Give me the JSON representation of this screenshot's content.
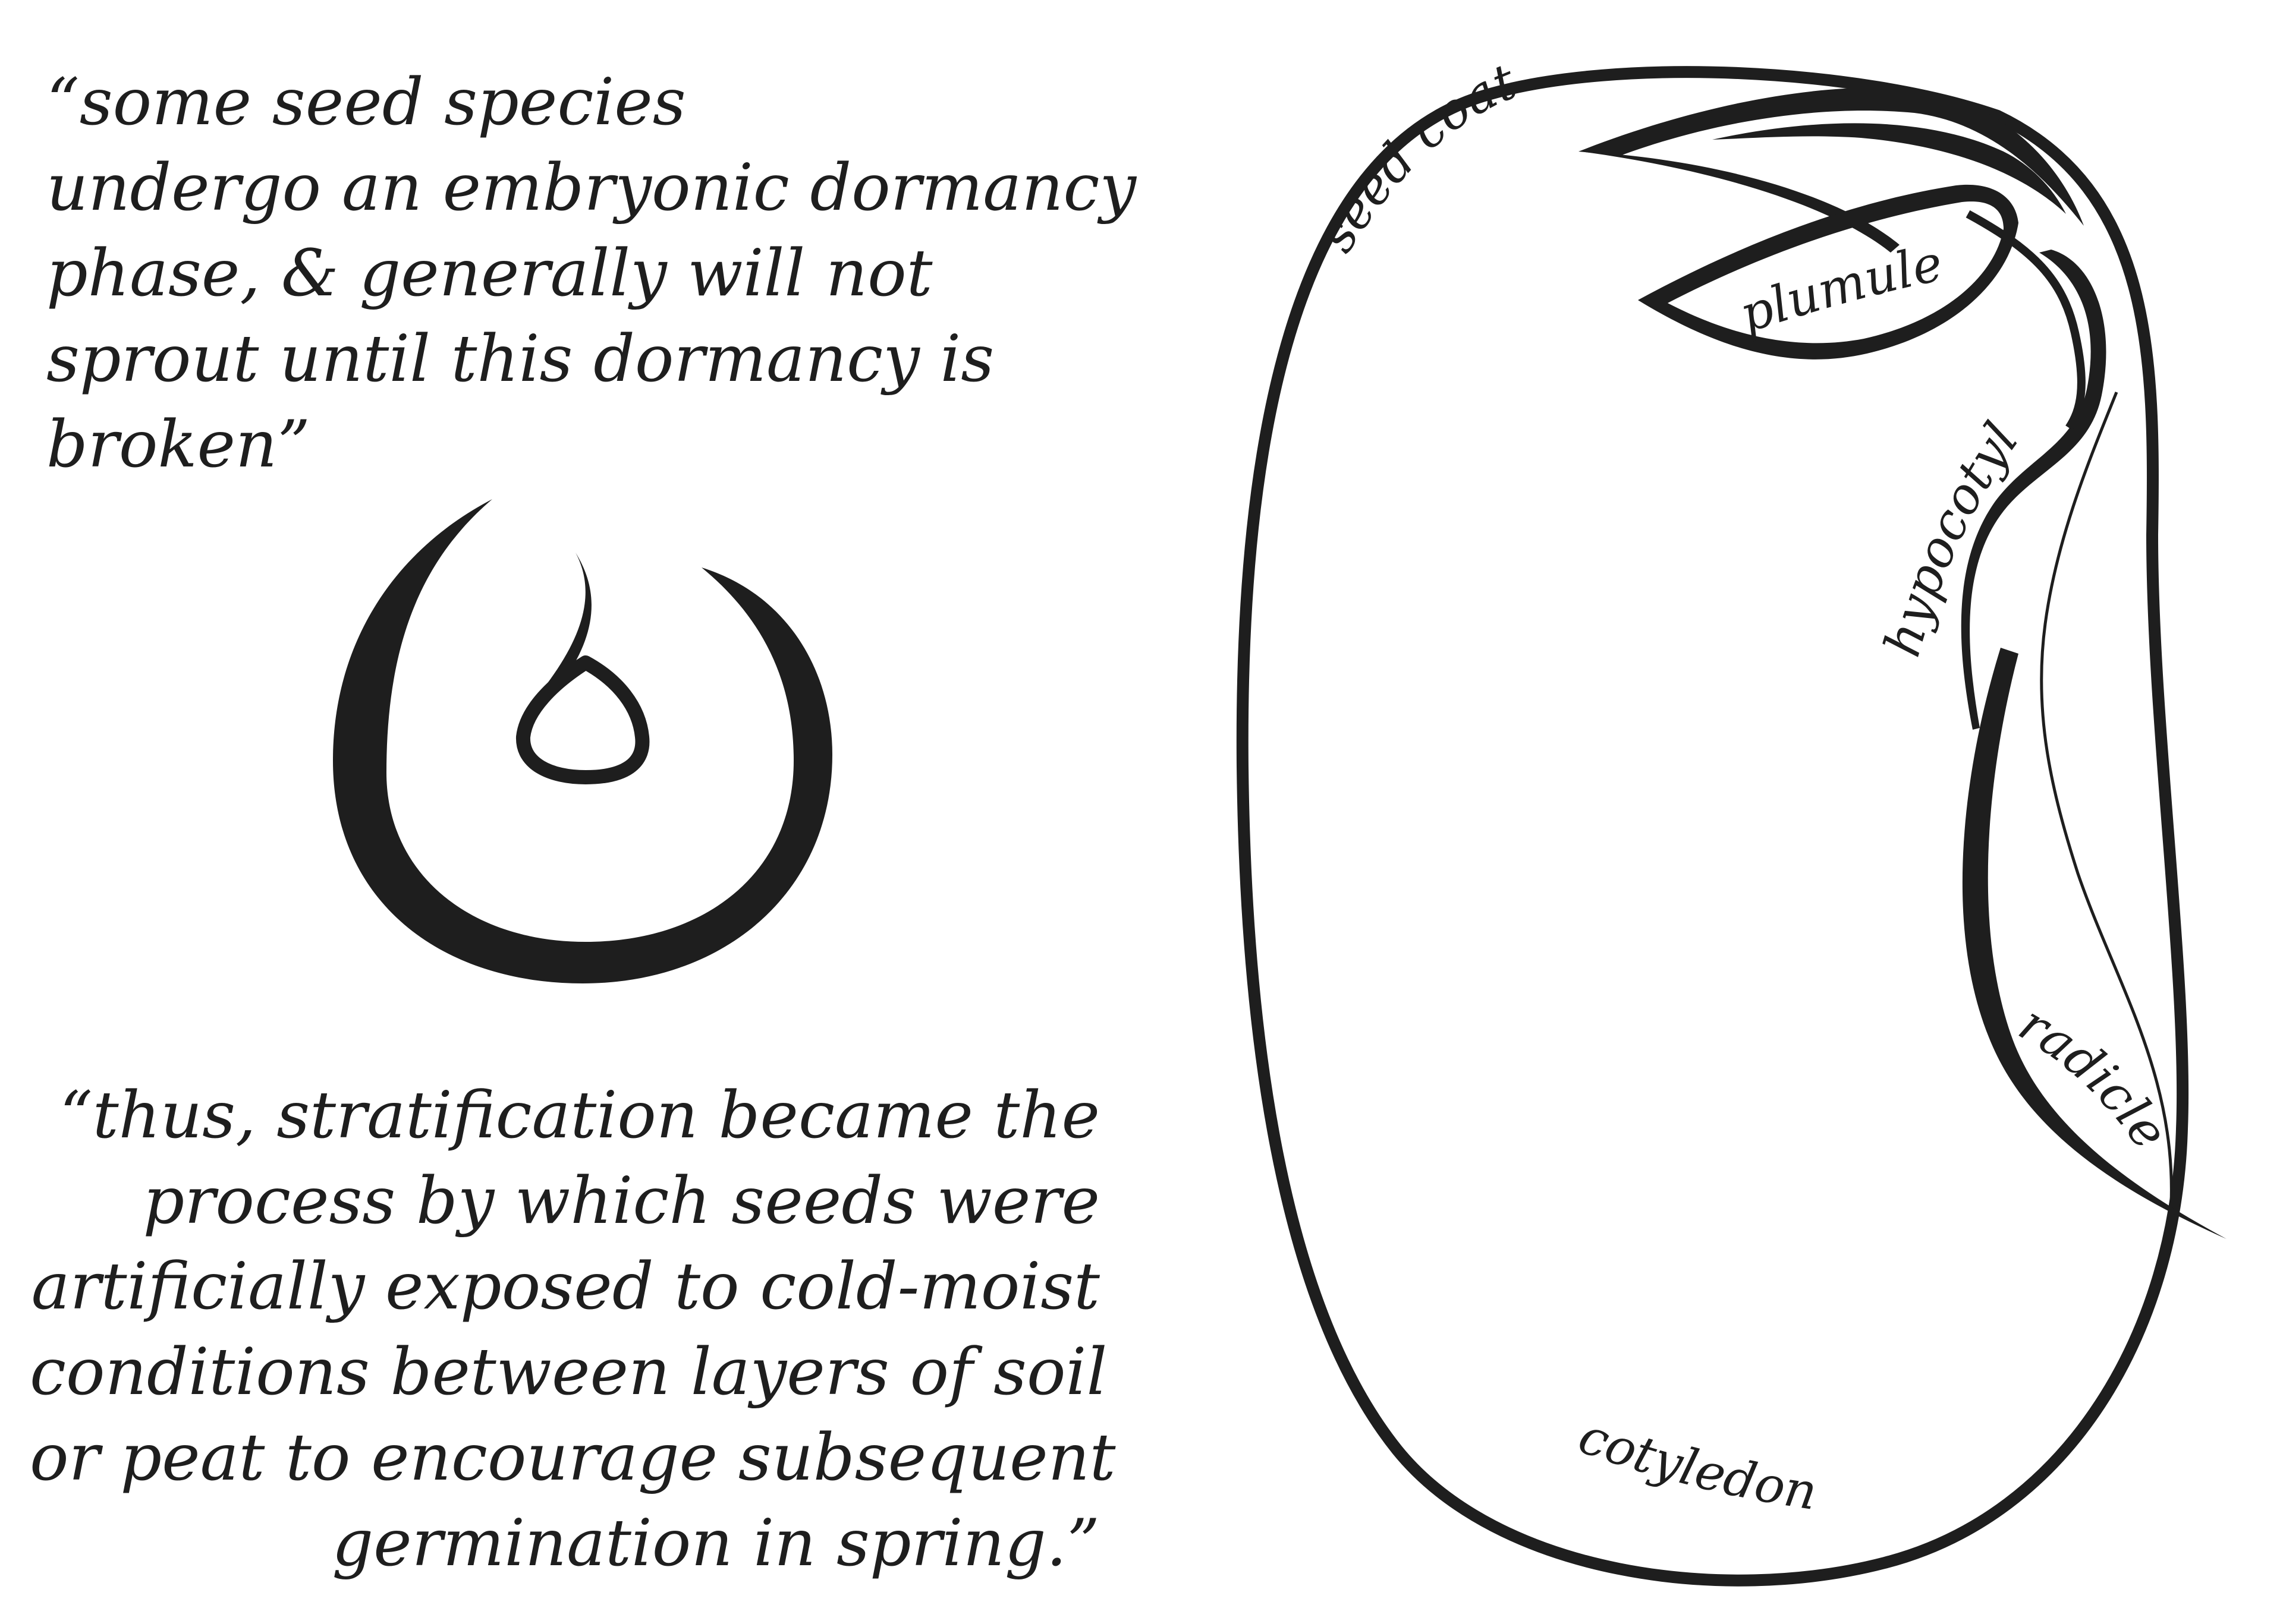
{
  "quote_top": {
    "lines": [
      "“some seed species",
      "undergo an embryonic dormancy",
      "phase, & generally will not",
      "sprout until this dormancy is",
      "broken”"
    ]
  },
  "quote_bottom": {
    "lines": [
      "“thus, stratification became the",
      "process by which seeds were",
      "artificially exposed to cold-moist",
      "conditions between layers of soil",
      "or peat to encourage subsequent",
      "germination in spring.”"
    ]
  },
  "diagram": {
    "labels": {
      "seed_coat": "seed coat",
      "plumule": "plumule",
      "hypocotyl": "hypocotyl",
      "radicle": "radicle",
      "cotyledon": "cotyledon"
    },
    "colors": {
      "ink": "#1e1e1e",
      "background": "#ffffff"
    },
    "icons": {
      "emblem": "seed-drop-emblem-icon"
    }
  }
}
